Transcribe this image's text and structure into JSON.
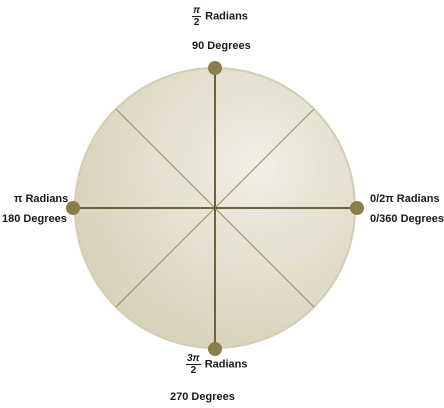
{
  "labels": {
    "top": {
      "num": "π",
      "den": "2",
      "radians": "Radians",
      "degrees": "90 Degrees"
    },
    "left": {
      "radians": "π Radians",
      "degrees": "180 Degrees"
    },
    "right": {
      "radians": "0/2π Radians",
      "degrees": "0/360 Degrees"
    },
    "bottom": {
      "num": "3π",
      "den": "2",
      "radians": "Radians",
      "degrees": "270 Degrees"
    }
  },
  "colors": {
    "disc_light": "#f1eee3",
    "disc_dark": "#d6d0b8",
    "rim": "#d4cdb4",
    "line": "#6b6240",
    "dot": "#8a7f4b"
  }
}
